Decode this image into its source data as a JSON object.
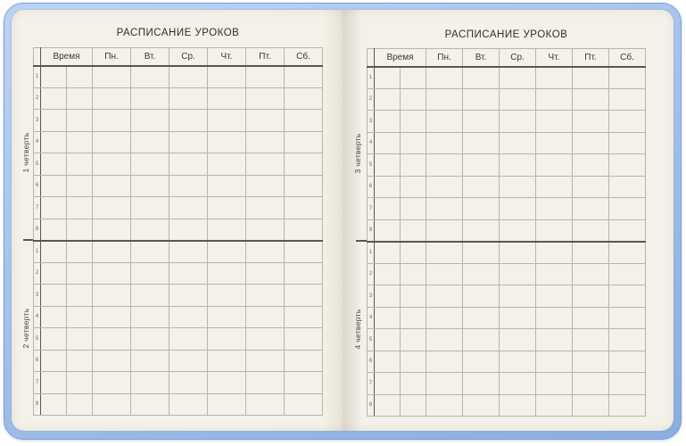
{
  "table": {
    "time_column": "Время",
    "day_columns": [
      "Пн.",
      "Вт.",
      "Ср.",
      "Чт.",
      "Пт.",
      "Сб."
    ],
    "lesson_numbers": [
      "1",
      "2",
      "3",
      "4",
      "5",
      "6",
      "7",
      "8"
    ]
  },
  "pages": [
    {
      "title": "РАСПИСАНИЕ УРОКОВ",
      "quarters": [
        {
          "label": "1 четверть"
        },
        {
          "label": "2 четверть"
        }
      ]
    },
    {
      "title": "РАСПИСАНИЕ УРОКОВ",
      "quarters": [
        {
          "label": "3 четверть"
        },
        {
          "label": "4 четверть"
        }
      ]
    }
  ],
  "colors": {
    "cover_blue": "#a5c2ea",
    "cover_edge": "#7ea2d4",
    "page_cream": "#f4f1e8",
    "grid_line": "#b8b4aa",
    "dark_line": "#59564f",
    "text": "#3a3833"
  }
}
